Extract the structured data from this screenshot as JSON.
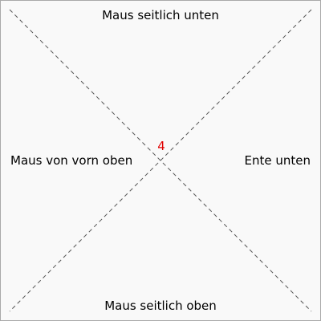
{
  "labels": {
    "top": "Maus seitlich unten",
    "bottom": "Maus seitlich oben",
    "left": "Maus von vorn oben",
    "right": "Ente unten"
  },
  "center_number": "4",
  "colors": {
    "center_number": "#e00000",
    "frame_border": "#a9a9a9",
    "background": "#f9f9f9",
    "diagonal_lines": "#555555"
  }
}
